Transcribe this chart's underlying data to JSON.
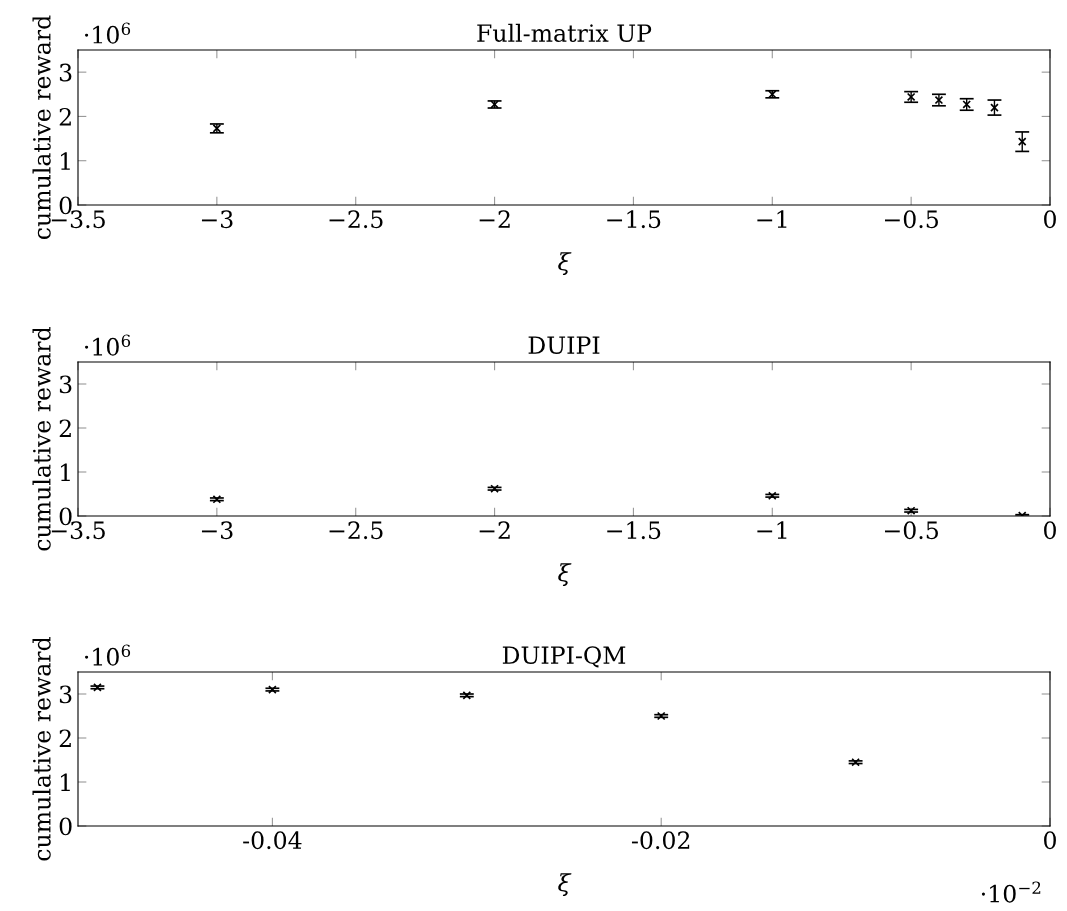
{
  "chart_data": [
    {
      "type": "scatter",
      "title": "Full-matrix UP",
      "xlabel": "ξ",
      "ylabel": "cumulative reward",
      "annotations": [
        "·10$^{6}$"
      ],
      "marker": "cross",
      "grid": false,
      "x": [
        -3,
        -2,
        -1,
        -0.5,
        -0.4,
        -0.3,
        -0.2,
        -0.1
      ],
      "series": [
        {
          "color": "#000000",
          "values": [
            1.73,
            2.27,
            2.5,
            2.44,
            2.37,
            2.27,
            2.2,
            1.43
          ],
          "errors": [
            0.1,
            0.08,
            0.08,
            0.12,
            0.13,
            0.13,
            0.17,
            0.22
          ]
        }
      ],
      "xlim": [
        -3.5,
        0
      ],
      "ylim": [
        0,
        3.5
      ],
      "xticks": [
        {
          "value": -3.5,
          "label": "−3.5"
        },
        {
          "value": -3,
          "label": "−3"
        },
        {
          "value": -2.5,
          "label": "−2.5"
        },
        {
          "value": -2,
          "label": "−2"
        },
        {
          "value": -1.5,
          "label": "−1.5"
        },
        {
          "value": -1,
          "label": "−1"
        },
        {
          "value": -0.5,
          "label": "−0.5"
        },
        0
      ],
      "yticks": [
        0,
        1,
        2,
        3
      ]
    },
    {
      "type": "scatter",
      "title": "DUIPI",
      "xlabel": "ξ",
      "ylabel": "cumulative reward",
      "annotations": [
        "·10$^{6}$"
      ],
      "marker": "cross",
      "grid": false,
      "x": [
        -3,
        -2,
        -1,
        -0.5,
        -0.1
      ],
      "series": [
        {
          "color": "#000000",
          "values": [
            0.38,
            0.62,
            0.46,
            0.12,
            0.01
          ],
          "errors": [
            0.03,
            0.03,
            0.03,
            0.03,
            0.02
          ]
        }
      ],
      "xlim": [
        -3.5,
        0
      ],
      "ylim": [
        0,
        3.5
      ],
      "xticks": [
        {
          "value": -3.5,
          "label": "−3.5"
        },
        {
          "value": -3,
          "label": "−3"
        },
        {
          "value": -2.5,
          "label": "−2.5"
        },
        {
          "value": -2,
          "label": "−2"
        },
        {
          "value": -1.5,
          "label": "−1.5"
        },
        {
          "value": -1,
          "label": "−1"
        },
        {
          "value": -0.5,
          "label": "−0.5"
        },
        0
      ],
      "yticks": [
        0,
        1,
        2,
        3
      ]
    },
    {
      "type": "scatter",
      "title": "DUIPI-QM",
      "xlabel": "ξ",
      "ylabel": "cumulative reward",
      "annotations": [
        "·10$^{6}$",
        "·10$^{−2}$"
      ],
      "marker": "cross",
      "grid": false,
      "x": [
        -0.049,
        -0.04,
        -0.03,
        -0.02,
        -0.01
      ],
      "series": [
        {
          "color": "#000000",
          "values": [
            3.15,
            3.1,
            2.97,
            2.5,
            1.45
          ],
          "errors": [
            0.03,
            0.03,
            0.03,
            0.03,
            0.03
          ]
        }
      ],
      "xlim": [
        -0.05,
        0
      ],
      "ylim": [
        0,
        3.5
      ],
      "xticks": [
        -0.04,
        -0.02,
        0
      ],
      "yticks": [
        0,
        1,
        2,
        3
      ]
    }
  ]
}
